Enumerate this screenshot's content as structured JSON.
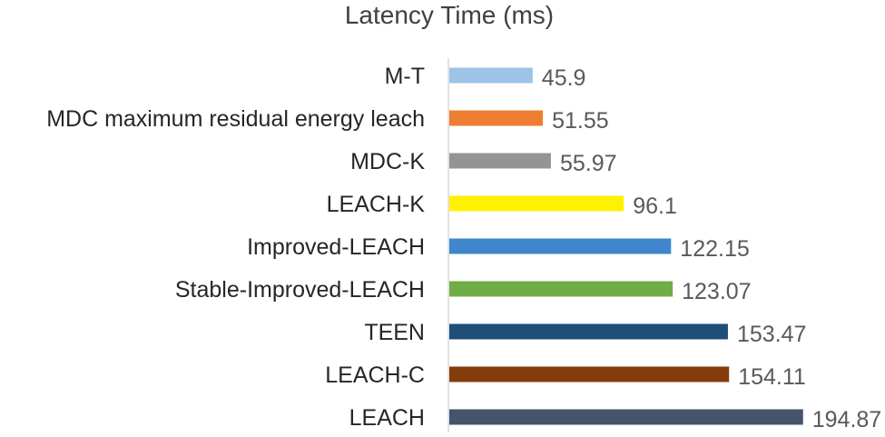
{
  "chart_data": {
    "type": "bar",
    "orientation": "horizontal",
    "title": "Latency Time (ms)",
    "xlabel": "",
    "ylabel": "",
    "categories": [
      "M-T",
      "MDC maximum residual energy leach",
      "MDC-K",
      "LEACH-K",
      "Improved-LEACH",
      "Stable-Improved-LEACH",
      "TEEN",
      "LEACH-C",
      "LEACH"
    ],
    "values": [
      45.9,
      51.55,
      55.97,
      96.1,
      122.15,
      123.07,
      153.47,
      154.11,
      194.87
    ],
    "value_labels": [
      "45.9",
      "51.55",
      "55.97",
      "96.1",
      "122.15",
      "123.07",
      "153.47",
      "154.11",
      "194.87"
    ],
    "colors": [
      "#9dc3e6",
      "#ed7d31",
      "#949494",
      "#fff200",
      "#3f86cc",
      "#70ad47",
      "#1f4e79",
      "#843c0c",
      "#44546a"
    ],
    "xlim": [
      0,
      200
    ],
    "grid": false,
    "legend": "none"
  }
}
